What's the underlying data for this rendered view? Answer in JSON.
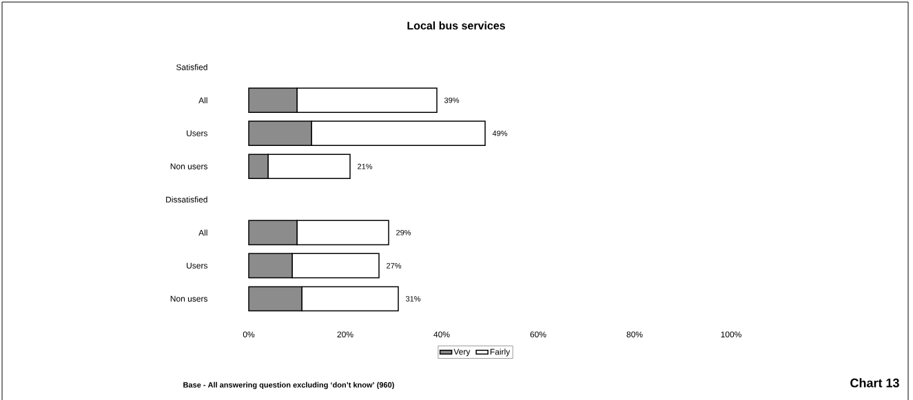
{
  "chart_data": {
    "type": "bar",
    "orientation": "horizontal",
    "stacked": true,
    "title": "Local bus services",
    "categories": [
      "Satisfied",
      "All",
      "Users",
      "Non users",
      "Dissatisfied",
      "All",
      "Users",
      "Non users"
    ],
    "series": [
      {
        "name": "Very",
        "color": "#8c8c8c",
        "values": [
          null,
          10,
          13,
          4,
          null,
          10,
          9,
          11
        ]
      },
      {
        "name": "Fairly",
        "color": "#ffffff",
        "values": [
          null,
          29,
          36,
          17,
          null,
          19,
          18,
          20
        ]
      }
    ],
    "totals": [
      null,
      "39%",
      "49%",
      "21%",
      null,
      "29%",
      "27%",
      "31%"
    ],
    "xlim": [
      0,
      100
    ],
    "xticks": [
      {
        "value": 0,
        "label": "0%"
      },
      {
        "value": 20,
        "label": "20%"
      },
      {
        "value": 40,
        "label": "40%"
      },
      {
        "value": 60,
        "label": "60%"
      },
      {
        "value": 80,
        "label": "80%"
      },
      {
        "value": 100,
        "label": "100%"
      }
    ],
    "legend": "bottom",
    "annotations": [
      "Base - All answering question excluding ‘don’t know’ (960)",
      "Chart 13"
    ]
  }
}
